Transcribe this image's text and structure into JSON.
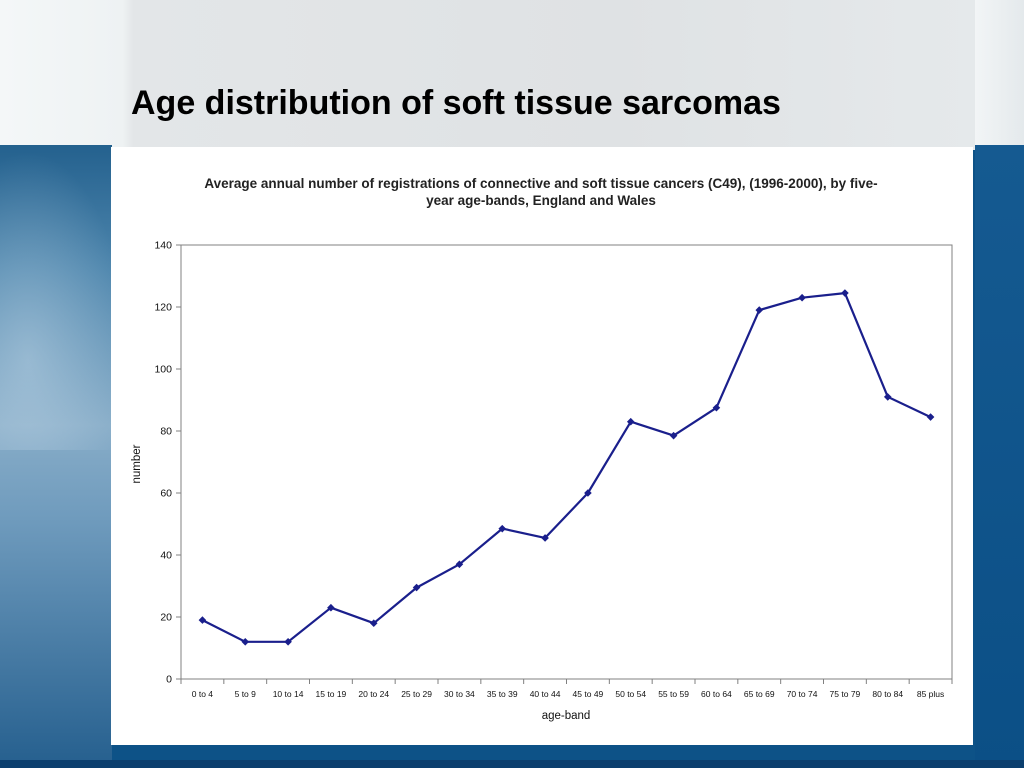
{
  "slide": {
    "title": "Age distribution of soft tissue sarcomas"
  },
  "colors": {
    "line": "#1a1f8c",
    "axis": "#808080"
  },
  "chart_data": {
    "type": "line",
    "title": "Average annual number of registrations of connective and soft tissue cancers (C49), (1996-2000), by five-year age-bands, England and Wales",
    "xlabel": "age-band",
    "ylabel": "number",
    "ylim": [
      0,
      140
    ],
    "yticks": [
      0,
      20,
      40,
      60,
      80,
      100,
      120,
      140
    ],
    "grid": false,
    "legend": "none",
    "categories": [
      "0 to 4",
      "5 to 9",
      "10 to 14",
      "15 to 19",
      "20 to 24",
      "25 to 29",
      "30 to 34",
      "35 to 39",
      "40 to 44",
      "45 to 49",
      "50 to 54",
      "55 to 59",
      "60 to 64",
      "65 to 69",
      "70 to 74",
      "75 to 79",
      "80 to 84",
      "85 plus"
    ],
    "values": [
      19,
      12,
      12,
      23,
      18,
      29.5,
      37,
      48.5,
      45.5,
      60,
      83,
      78.5,
      87.5,
      119,
      123,
      124.5,
      91,
      84.5
    ]
  }
}
